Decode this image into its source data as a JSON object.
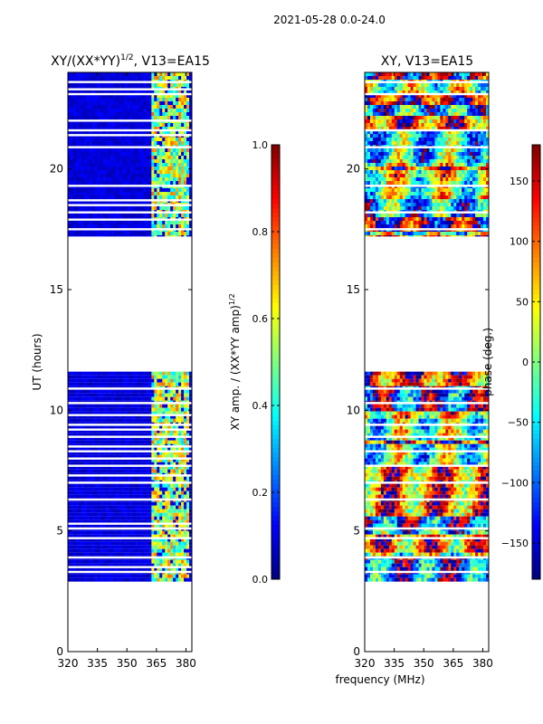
{
  "figure_title": "2021-05-28 0.0-24.0",
  "colormap": [
    "#00007f",
    "#0000ff",
    "#007fff",
    "#00ffff",
    "#7fff7f",
    "#ffff00",
    "#ff7f00",
    "#ff0000",
    "#7f0000"
  ],
  "chart_data": [
    {
      "type": "heatmap",
      "name": "amplitude-panel",
      "title_main": "XY/(XX*YY)",
      "title_sup": "1/2",
      "title_suffix": ", V13=EA15",
      "xlabel": "",
      "ylabel": "UT (hours)",
      "xlim": [
        320,
        383
      ],
      "ylim": [
        0,
        24
      ],
      "xticks": [
        320,
        335,
        350,
        365,
        380
      ],
      "yticks": [
        0,
        5,
        10,
        15,
        20
      ],
      "colorbar": {
        "label_main": "XY amp. / (XX*YY amp)",
        "label_sup": "1/2",
        "range": [
          0.0,
          1.0
        ],
        "ticks": [
          "0.0",
          "0.2",
          "0.4",
          "0.6",
          "0.8",
          "1.0"
        ]
      },
      "data_time_ranges_hours": [
        [
          2.9,
          11.6
        ],
        [
          17.2,
          24.0
        ]
      ],
      "gap_hours": [
        3.3,
        3.5,
        3.9,
        4.7,
        5.1,
        5.3,
        6.3,
        7.0,
        7.3,
        7.7,
        8.0,
        8.3,
        8.5,
        8.9,
        9.2,
        9.4,
        9.8,
        10.3,
        10.9,
        17.5,
        17.9,
        18.2,
        18.5,
        18.7,
        19.3,
        20.9,
        21.4,
        21.6,
        22.0,
        23.1,
        23.3,
        23.6
      ],
      "bright_channel_band_mhz": [
        362,
        381
      ],
      "typical_amplitude_outside_band": 0.05,
      "typical_amplitude_inside_band": 0.55
    },
    {
      "type": "heatmap",
      "name": "phase-panel",
      "title_main": "XY, V13=EA15",
      "xlabel": "frequency (MHz)",
      "ylabel": "",
      "xlim": [
        320,
        383
      ],
      "ylim": [
        0,
        24
      ],
      "xticks": [
        320,
        335,
        350,
        365,
        380
      ],
      "yticks": [
        0,
        5,
        10,
        15,
        20
      ],
      "colorbar": {
        "label_main": "phase (deg.)",
        "range": [
          -180,
          180
        ],
        "ticks": [
          "−150",
          "−100",
          "−50",
          "0",
          "50",
          "100",
          "150"
        ]
      },
      "data_time_ranges_hours": [
        [
          2.9,
          11.6
        ],
        [
          17.2,
          24.0
        ]
      ],
      "gap_hours": [
        3.3,
        3.9,
        4.7,
        5.1,
        6.3,
        7.0,
        7.7,
        8.3,
        8.9,
        9.4,
        10.3,
        10.9,
        17.5,
        18.2,
        19.3,
        20.9,
        21.6,
        23.1,
        23.6
      ],
      "phase_range_deg": [
        -180,
        180
      ]
    }
  ]
}
